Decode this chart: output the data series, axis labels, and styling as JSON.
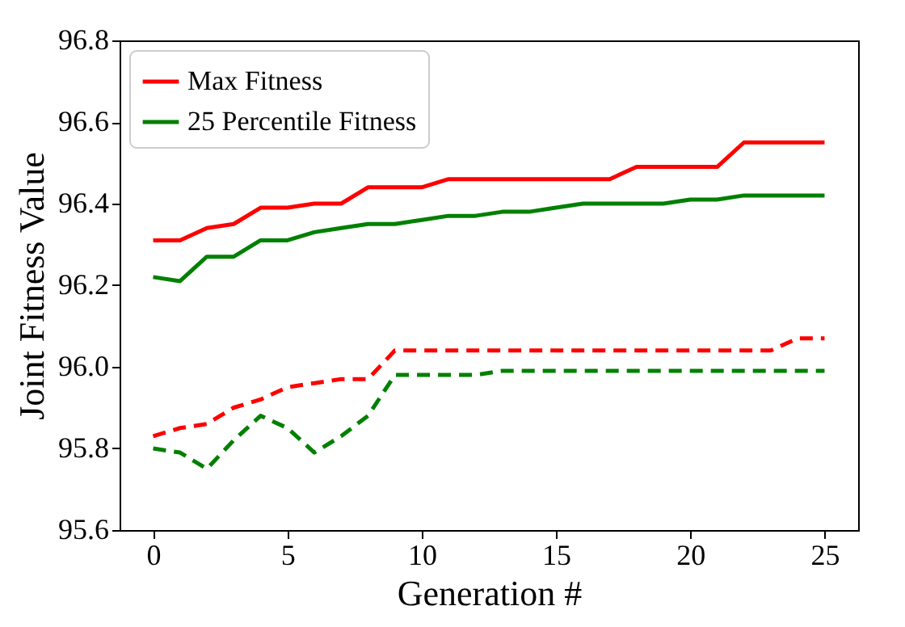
{
  "chart_data": {
    "type": "line",
    "xlabel": "Generation #",
    "ylabel": "Joint Fitness Value",
    "x": [
      0,
      1,
      2,
      3,
      4,
      5,
      6,
      7,
      8,
      9,
      10,
      11,
      12,
      13,
      14,
      15,
      16,
      17,
      18,
      19,
      20,
      21,
      22,
      23,
      24,
      25
    ],
    "series": [
      {
        "name": "Max Fitness",
        "color": "#ff0000",
        "line_style": "solid",
        "values": [
          96.31,
          96.31,
          96.34,
          96.35,
          96.39,
          96.39,
          96.4,
          96.4,
          96.44,
          96.44,
          96.44,
          96.46,
          96.46,
          96.46,
          96.46,
          96.46,
          96.46,
          96.46,
          96.49,
          96.49,
          96.49,
          96.49,
          96.55,
          96.55,
          96.55,
          96.55
        ]
      },
      {
        "name": "25 Percentile Fitness",
        "color": "#008000",
        "line_style": "solid",
        "values": [
          96.22,
          96.21,
          96.27,
          96.27,
          96.31,
          96.31,
          96.33,
          96.34,
          96.35,
          96.35,
          96.36,
          96.37,
          96.37,
          96.38,
          96.38,
          96.39,
          96.4,
          96.4,
          96.4,
          96.4,
          96.41,
          96.41,
          96.42,
          96.42,
          96.42,
          96.42
        ]
      },
      {
        "color": "#ff0000",
        "line_style": "dashed",
        "values": [
          95.83,
          95.85,
          95.86,
          95.9,
          95.92,
          95.95,
          95.96,
          95.97,
          95.97,
          96.04,
          96.04,
          96.04,
          96.04,
          96.04,
          96.04,
          96.04,
          96.04,
          96.04,
          96.04,
          96.04,
          96.04,
          96.04,
          96.04,
          96.04,
          96.07,
          96.07
        ]
      },
      {
        "color": "#008000",
        "line_style": "dashed",
        "values": [
          95.8,
          95.79,
          95.75,
          95.82,
          95.88,
          95.85,
          95.79,
          95.83,
          95.88,
          95.98,
          95.98,
          95.98,
          95.98,
          95.99,
          95.99,
          95.99,
          95.99,
          95.99,
          95.99,
          95.99,
          95.99,
          95.99,
          95.99,
          95.99,
          95.99,
          95.99
        ]
      }
    ],
    "xlim": [
      -1.25,
      26.25
    ],
    "xticks": [
      0,
      5,
      10,
      15,
      20,
      25
    ],
    "ylim": [
      95.6,
      96.8
    ],
    "yticks": [
      95.6,
      95.8,
      {
        "value": 96,
        "label": "96.0"
      },
      96.2,
      96.4,
      96.6,
      96.8
    ],
    "grid": false,
    "legend": "top left",
    "marker": "none"
  }
}
